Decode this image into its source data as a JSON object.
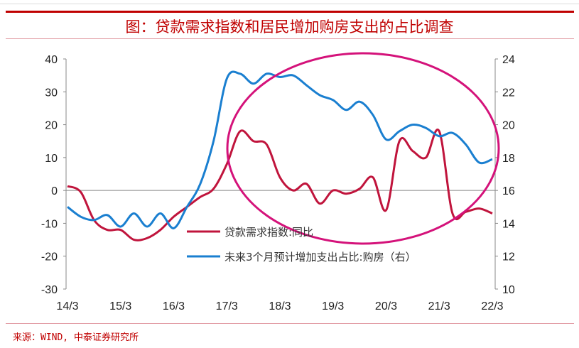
{
  "title": "图：贷款需求指数和居民增加购房支出的占比调查",
  "source": "来源：WIND, 中泰证券研究所",
  "colors": {
    "red": "#c0143c",
    "blue": "#1a7fd0",
    "ellipse": "#d4127a",
    "title": "#c00000"
  },
  "chart_data": {
    "type": "line",
    "title": "图：贷款需求指数和居民增加购房支出的占比调查",
    "x_tick_labels": [
      "14/3",
      "15/3",
      "16/3",
      "17/3",
      "18/3",
      "19/3",
      "20/3",
      "21/3",
      "22/3"
    ],
    "x_unit": "quarters since 14/3",
    "left_axis": {
      "ylim": [
        -30,
        40
      ],
      "ticks": [
        "40",
        "30",
        "20",
        "10",
        "0",
        "-10",
        "-20",
        "-30"
      ],
      "tick_values": [
        40,
        30,
        20,
        10,
        0,
        -10,
        -20,
        -30
      ]
    },
    "right_axis": {
      "ylim": [
        10,
        24
      ],
      "ticks": [
        "24",
        "22",
        "20",
        "18",
        "16",
        "14",
        "12",
        "10"
      ],
      "tick_values": [
        24,
        22,
        20,
        18,
        16,
        14,
        12,
        10
      ]
    },
    "legend_position": "bottom-center",
    "series": [
      {
        "name": "贷款需求指数:同比",
        "axis": "left",
        "color": "#c0143c",
        "values": [
          1.3,
          -0.5,
          -9,
          -12,
          -12,
          -15,
          -14.5,
          -12,
          -8,
          -5,
          -2,
          0.5,
          8,
          18,
          15,
          14,
          4,
          0,
          2,
          -4,
          0,
          -1,
          0.5,
          4,
          -6,
          15,
          12,
          10,
          18,
          -7,
          -6.5,
          -5.5,
          -7
        ]
      },
      {
        "name": "未来3个月预计增加支出占比:购房（右）",
        "axis": "right",
        "color": "#1a7fd0",
        "values": [
          15,
          14.4,
          14.2,
          14.5,
          13.8,
          14.6,
          13.8,
          14.6,
          13.7,
          15,
          16.4,
          19,
          22.8,
          23.1,
          22.5,
          23.1,
          22.9,
          23,
          22.4,
          21.8,
          21.5,
          20.9,
          21.4,
          20.6,
          19.1,
          19.6,
          20,
          19.8,
          19.3,
          19.5,
          18.8,
          17.7,
          17.9
        ]
      }
    ]
  }
}
